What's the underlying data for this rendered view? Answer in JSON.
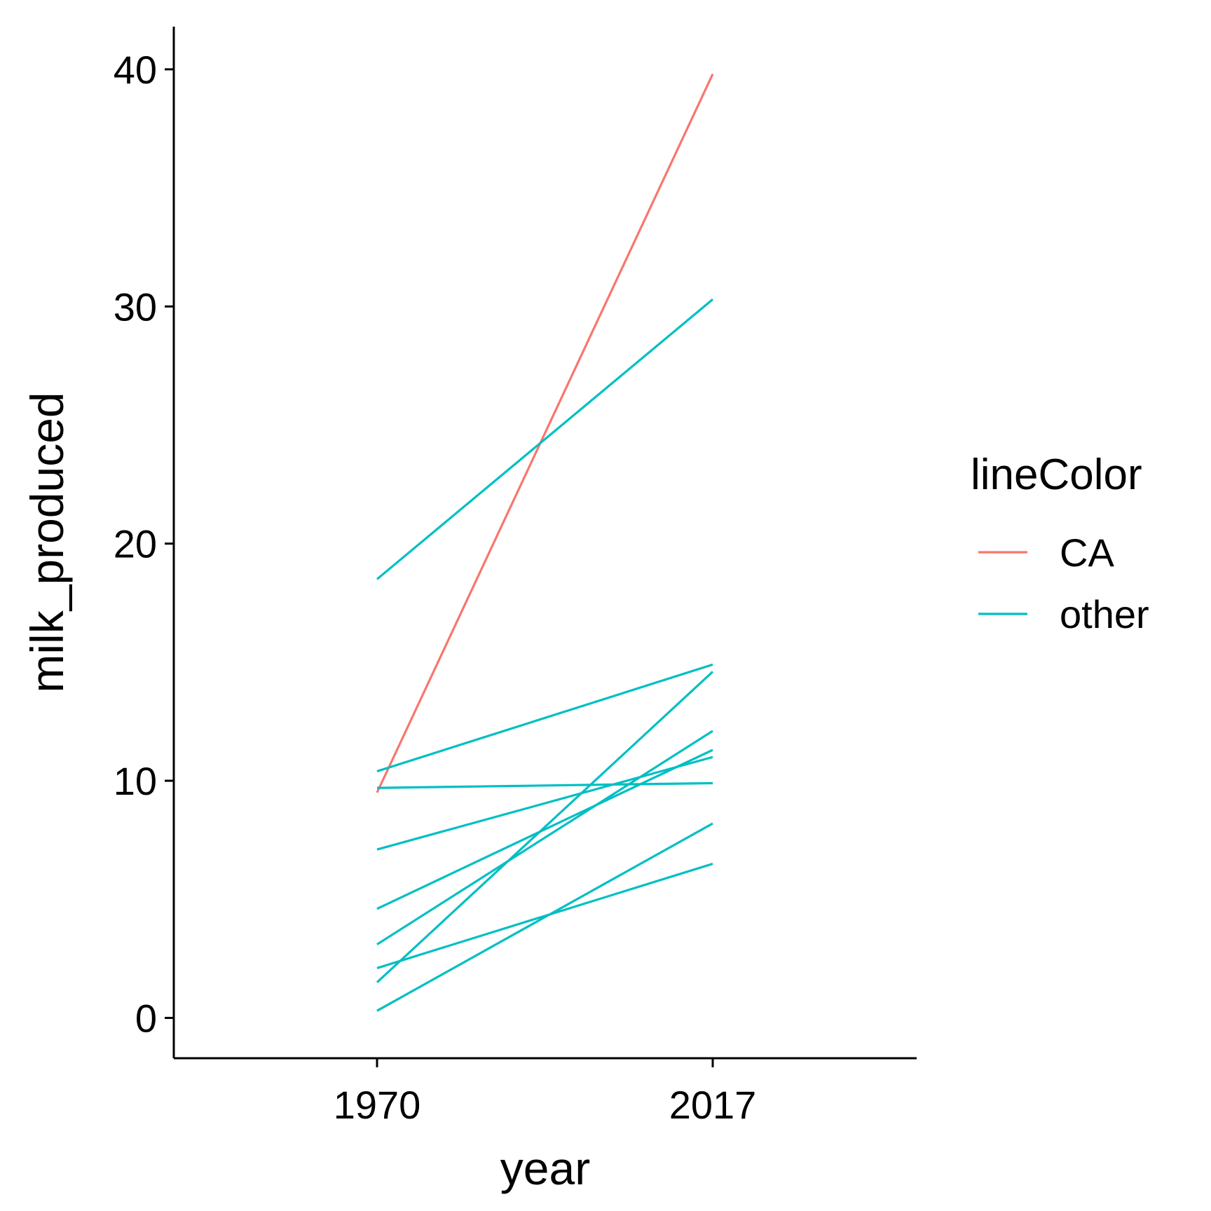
{
  "chart_data": {
    "type": "line",
    "title": "",
    "xlabel": "year",
    "ylabel": "milk_produced",
    "x": [
      1970,
      2017
    ],
    "x_tick_labels": [
      "1970",
      "2017"
    ],
    "ylim": [
      -1.7,
      41.8
    ],
    "y_ticks": [
      0,
      10,
      20,
      30,
      40
    ],
    "y_tick_labels": [
      "0",
      "10",
      "20",
      "30",
      "40"
    ],
    "grid": false,
    "legend": {
      "title": "lineColor",
      "position": "right",
      "entries": [
        {
          "label": "CA",
          "color": "#F8766D"
        },
        {
          "label": "other",
          "color": "#00BFC4"
        }
      ]
    },
    "series": [
      {
        "group": "CA",
        "values": [
          9.5,
          39.8
        ]
      },
      {
        "group": "other",
        "values": [
          18.5,
          30.3
        ]
      },
      {
        "group": "other",
        "values": [
          10.4,
          14.9
        ]
      },
      {
        "group": "other",
        "values": [
          1.5,
          14.6
        ]
      },
      {
        "group": "other",
        "values": [
          3.1,
          12.1
        ]
      },
      {
        "group": "other",
        "values": [
          4.6,
          11.3
        ]
      },
      {
        "group": "other",
        "values": [
          7.1,
          11.0
        ]
      },
      {
        "group": "other",
        "values": [
          9.7,
          9.9
        ]
      },
      {
        "group": "other",
        "values": [
          0.3,
          8.2
        ]
      },
      {
        "group": "other",
        "values": [
          2.1,
          6.5
        ]
      }
    ]
  }
}
